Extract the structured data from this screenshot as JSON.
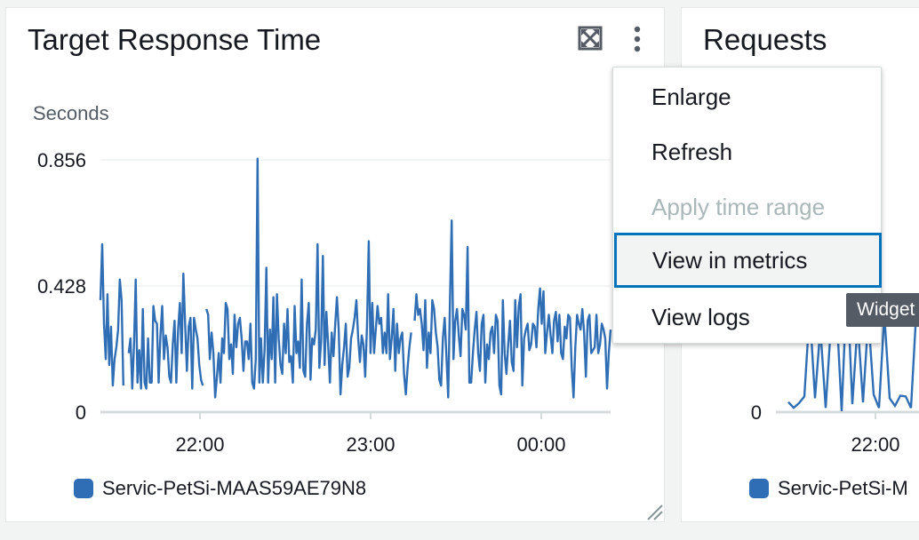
{
  "widgets": [
    {
      "title": "Target Response Time",
      "unit_label": "Seconds",
      "legend": "Servic-PetSi-MAAS59AE79N8",
      "icons": {
        "expand": "expand-icon",
        "menu": "kebab-menu-icon",
        "resize": "resize-handle-icon"
      }
    },
    {
      "title": "Requests",
      "legend": "Servic-PetSi-M"
    }
  ],
  "menu": {
    "items": [
      {
        "label": "Enlarge",
        "state": "enabled"
      },
      {
        "label": "Refresh",
        "state": "enabled"
      },
      {
        "label": "Apply time range",
        "state": "disabled"
      },
      {
        "label": "View in metrics",
        "state": "focused"
      },
      {
        "label": "View logs",
        "state": "enabled"
      }
    ]
  },
  "tooltip": {
    "text": "Widget"
  },
  "colors": {
    "series": "#2f6eb5",
    "focus": "#0073bb",
    "disabled": "#aab7b8"
  },
  "chart_data": [
    {
      "type": "line",
      "y_ticks": [
        "0.856",
        "0.428",
        "0"
      ],
      "x_ticks": [
        "22:00",
        "23:00",
        "00:00"
      ],
      "ylim": [
        0,
        0.856
      ],
      "grid": true,
      "legend_placement": "bottom-left",
      "series": [
        {
          "name": "Servic-PetSi-MAAS59AE79N8",
          "values": [
            0.38,
            0.57,
            0.3,
            0.18,
            0.4,
            0.16,
            0.29,
            0.09,
            0.18,
            0.22,
            0.28,
            0.45,
            0.38,
            0.09,
            null,
            null,
            0.2,
            0.25,
            0.08,
            0.22,
            0.45,
            0.1,
            0.21,
            0.08,
            0.35,
            0.1,
            0.08,
            0.25,
            0.1,
            0.1,
            0.36,
            0.31,
            0.3,
            0.1,
            0.26,
            0.36,
            0.18,
            0.26,
            0.22,
            0.12,
            0.1,
            0.23,
            0.31,
            0.1,
            0.28,
            0.37,
            0.2,
            0.47,
            0.3,
            0.14,
            0.29,
            0.32,
            0.08,
            0.32,
            0.28,
            0.25,
            0.16,
            0.11,
            0.09,
            null,
            0.35,
            0.33,
            0.18,
            0.27,
            0.2,
            0.05,
            0.12,
            0.2,
            0.1,
            0.25,
            0.2,
            0.37,
            0.35,
            0.18,
            0.23,
            0.13,
            0.33,
            0.22,
            0.3,
            0.32,
            0.25,
            0.14,
            0.24,
            0.24,
            0.18,
            0.3,
            0.1,
            0.08,
            0.18,
            0.86,
            0.1,
            0.25,
            0.1,
            0.21,
            0.49,
            0.1,
            0.28,
            0.18,
            0.39,
            0.1,
            0.4,
            0.25,
            0.16,
            0.13,
            0.3,
            0.2,
            0.35,
            0.17,
            0.19,
            0.1,
            0.36,
            0.2,
            0.24,
            0.15,
            0.45,
            0.14,
            0.12,
            0.3,
            0.37,
            0.11,
            0.25,
            0.23,
            0.28,
            0.57,
            0.15,
            0.24,
            0.53,
            0.16,
            0.34,
            0.23,
            0.1,
            0.27,
            0.19,
            0.3,
            0.39,
            0.28,
            0.06,
            0.16,
            0.22,
            0.3,
            0.12,
            0.15,
            0.25,
            0.28,
            0.32,
            0.38,
            0.25,
            0.17,
            0.26,
            0.23,
            0.12,
            0.29,
            0.58,
            0.2,
            0.37,
            0.2,
            0.28,
            0.36,
            0.3,
            0.32,
            0.2,
            0.27,
            0.2,
            0.4,
            0.18,
            0.25,
            0.35,
            0.14,
            0.3,
            0.2,
            0.25,
            0.27,
            0.13,
            0.06,
            0.15,
            0.22,
            0.27,
            null,
            0.31,
            0.4,
            0.33,
            0.35,
            0.3,
            0.21,
            0.38,
            0.15,
            0.27,
            0.2,
            0.38,
            0.35,
            0.27,
            0.22,
            0.11,
            0.09,
            0.25,
            0.32,
            0.19,
            0.05,
            0.38,
            0.65,
            0.18,
            0.31,
            0.35,
            0.26,
            0.19,
            0.35,
            0.33,
            0.28,
            0.56,
            0.1,
            0.1,
            0.2,
            0.28,
            0.34,
            0.2,
            0.14,
            0.3,
            0.33,
            0.1,
            0.23,
            0.18,
            0.27,
            0.29,
            0.2,
            0.33,
            0.31,
            0.09,
            0.06,
            0.38,
            0.2,
            0.13,
            0.23,
            0.31,
            0.17,
            0.14,
            0.38,
            0.22,
            0.36,
            0.4,
            0.09,
            0.25,
            0.28,
            0.3,
            0.21,
            0.23,
            0.3,
            0.29,
            0.22,
            0.35,
            0.42,
            0.3,
            0.41,
            0.2,
            0.27,
            0.33,
            0.26,
            0.2,
            0.31,
            0.34,
            0.24,
            0.33,
            0.2,
            0.18,
            0.29,
            0.25,
            0.33,
            0.32,
            0.15,
            0.05,
            0.22,
            0.33,
            0.3,
            0.28,
            0.35,
            0.27,
            0.12,
            0.31,
            0.33,
            0.2,
            0.21,
            0.22,
            0.33,
            0.2,
            0.23,
            0.3,
            0.28,
            0.25,
            0.08,
            0.2,
            0.28
          ]
        }
      ]
    },
    {
      "type": "line",
      "y_ticks": [
        "0"
      ],
      "x_ticks": [
        "22:00"
      ],
      "series": [
        {
          "name": "Servic-PetSi-M"
        }
      ]
    }
  ]
}
